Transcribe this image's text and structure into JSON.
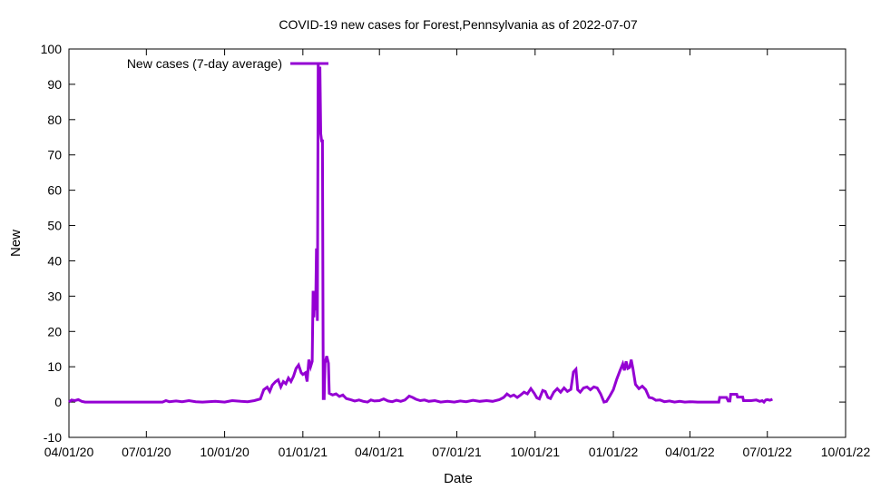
{
  "chart_data": {
    "type": "line",
    "title": "COVID-19 new cases for Forest,Pennsylvania as of 2022-07-07",
    "xlabel": "Date",
    "ylabel": "New",
    "xlim": [
      "2020-04-01",
      "2022-10-01"
    ],
    "ylim": [
      -10,
      100
    ],
    "x_ticks": [
      "04/01/20",
      "07/01/20",
      "10/01/20",
      "01/01/21",
      "04/01/21",
      "07/01/21",
      "10/01/21",
      "01/01/22",
      "04/01/22",
      "07/01/22",
      "10/01/22"
    ],
    "y_ticks": [
      -10,
      0,
      10,
      20,
      30,
      40,
      50,
      60,
      70,
      80,
      90,
      100
    ],
    "grid": false,
    "legend_position": "top-left",
    "series": [
      {
        "name": "New cases (7-day average)",
        "color": "#9400d3",
        "points": [
          [
            "2020-04-01",
            0
          ],
          [
            "2020-04-04",
            0.6
          ],
          [
            "2020-04-08",
            0.4
          ],
          [
            "2020-04-12",
            0.7
          ],
          [
            "2020-04-16",
            0.2
          ],
          [
            "2020-04-20",
            0
          ],
          [
            "2020-05-01",
            0
          ],
          [
            "2020-06-01",
            0
          ],
          [
            "2020-07-01",
            0
          ],
          [
            "2020-07-20",
            0
          ],
          [
            "2020-07-24",
            0.4
          ],
          [
            "2020-07-28",
            0.1
          ],
          [
            "2020-08-05",
            0.3
          ],
          [
            "2020-08-12",
            0.1
          ],
          [
            "2020-08-20",
            0.4
          ],
          [
            "2020-08-28",
            0.1
          ],
          [
            "2020-09-05",
            0
          ],
          [
            "2020-09-20",
            0.2
          ],
          [
            "2020-10-01",
            0
          ],
          [
            "2020-10-10",
            0.4
          ],
          [
            "2020-10-20",
            0.2
          ],
          [
            "2020-10-28",
            0.1
          ],
          [
            "2020-11-05",
            0.4
          ],
          [
            "2020-11-12",
            0.9
          ],
          [
            "2020-11-16",
            3.5
          ],
          [
            "2020-11-20",
            4.2
          ],
          [
            "2020-11-23",
            3.0
          ],
          [
            "2020-11-26",
            4.8
          ],
          [
            "2020-11-30",
            5.8
          ],
          [
            "2020-12-03",
            6.3
          ],
          [
            "2020-12-06",
            4.3
          ],
          [
            "2020-12-09",
            5.8
          ],
          [
            "2020-12-12",
            5.2
          ],
          [
            "2020-12-15",
            6.8
          ],
          [
            "2020-12-18",
            5.8
          ],
          [
            "2020-12-21",
            7.3
          ],
          [
            "2020-12-24",
            9.5
          ],
          [
            "2020-12-27",
            10.5
          ],
          [
            "2020-12-30",
            8.3
          ],
          [
            "2021-01-01",
            7.8
          ],
          [
            "2021-01-04",
            8.3
          ],
          [
            "2021-01-06",
            5.8
          ],
          [
            "2021-01-08",
            12.0
          ],
          [
            "2021-01-10",
            10.0
          ],
          [
            "2021-01-12",
            11.5
          ],
          [
            "2021-01-13",
            31.5
          ],
          [
            "2021-01-14",
            24.0
          ],
          [
            "2021-01-15",
            31.0
          ],
          [
            "2021-01-16",
            26.0
          ],
          [
            "2021-01-17",
            43.5
          ],
          [
            "2021-01-18",
            23.0
          ],
          [
            "2021-01-19",
            96.0
          ],
          [
            "2021-01-20",
            90.0
          ],
          [
            "2021-01-21",
            95.0
          ],
          [
            "2021-01-22",
            76.0
          ],
          [
            "2021-01-23",
            74.0
          ],
          [
            "2021-01-24",
            74.0
          ],
          [
            "2021-01-25",
            1.0
          ],
          [
            "2021-01-26",
            1.0
          ],
          [
            "2021-01-27",
            11.0
          ],
          [
            "2021-01-29",
            13.0
          ],
          [
            "2021-01-31",
            11.0
          ],
          [
            "2021-02-01",
            2.5
          ],
          [
            "2021-02-05",
            2.0
          ],
          [
            "2021-02-09",
            2.3
          ],
          [
            "2021-02-13",
            1.6
          ],
          [
            "2021-02-17",
            2.0
          ],
          [
            "2021-02-21",
            1.0
          ],
          [
            "2021-02-26",
            0.7
          ],
          [
            "2021-03-03",
            0.3
          ],
          [
            "2021-03-08",
            0.6
          ],
          [
            "2021-03-13",
            0.2
          ],
          [
            "2021-03-18",
            0
          ],
          [
            "2021-03-22",
            0.6
          ],
          [
            "2021-03-26",
            0.3
          ],
          [
            "2021-04-01",
            0.4
          ],
          [
            "2021-04-06",
            0.9
          ],
          [
            "2021-04-11",
            0.3
          ],
          [
            "2021-04-16",
            0.1
          ],
          [
            "2021-04-21",
            0.5
          ],
          [
            "2021-04-26",
            0.2
          ],
          [
            "2021-05-01",
            0.6
          ],
          [
            "2021-05-06",
            1.7
          ],
          [
            "2021-05-10",
            1.3
          ],
          [
            "2021-05-14",
            0.8
          ],
          [
            "2021-05-19",
            0.4
          ],
          [
            "2021-05-24",
            0.6
          ],
          [
            "2021-05-29",
            0.2
          ],
          [
            "2021-06-05",
            0.4
          ],
          [
            "2021-06-12",
            0
          ],
          [
            "2021-06-20",
            0.2
          ],
          [
            "2021-06-28",
            0
          ],
          [
            "2021-07-05",
            0.3
          ],
          [
            "2021-07-12",
            0.1
          ],
          [
            "2021-07-20",
            0.5
          ],
          [
            "2021-07-28",
            0.2
          ],
          [
            "2021-08-05",
            0.4
          ],
          [
            "2021-08-12",
            0.2
          ],
          [
            "2021-08-20",
            0.7
          ],
          [
            "2021-08-25",
            1.3
          ],
          [
            "2021-08-29",
            2.3
          ],
          [
            "2021-09-02",
            1.6
          ],
          [
            "2021-09-06",
            2.0
          ],
          [
            "2021-09-10",
            1.3
          ],
          [
            "2021-09-14",
            2.0
          ],
          [
            "2021-09-18",
            2.8
          ],
          [
            "2021-09-22",
            2.3
          ],
          [
            "2021-09-26",
            3.8
          ],
          [
            "2021-09-30",
            2.5
          ],
          [
            "2021-10-03",
            1.2
          ],
          [
            "2021-10-06",
            0.9
          ],
          [
            "2021-10-10",
            3.3
          ],
          [
            "2021-10-13",
            3.0
          ],
          [
            "2021-10-16",
            1.3
          ],
          [
            "2021-10-19",
            1.0
          ],
          [
            "2021-10-23",
            2.8
          ],
          [
            "2021-10-27",
            3.8
          ],
          [
            "2021-10-31",
            2.8
          ],
          [
            "2021-11-04",
            4.0
          ],
          [
            "2021-11-08",
            3.0
          ],
          [
            "2021-11-12",
            3.6
          ],
          [
            "2021-11-15",
            8.5
          ],
          [
            "2021-11-18",
            9.3
          ],
          [
            "2021-11-20",
            3.5
          ],
          [
            "2021-11-23",
            2.8
          ],
          [
            "2021-11-27",
            4.0
          ],
          [
            "2021-12-01",
            4.3
          ],
          [
            "2021-12-05",
            3.5
          ],
          [
            "2021-12-09",
            4.3
          ],
          [
            "2021-12-13",
            4.0
          ],
          [
            "2021-12-17",
            2.3
          ],
          [
            "2021-12-21",
            0
          ],
          [
            "2021-12-24",
            0.2
          ],
          [
            "2021-12-28",
            1.8
          ],
          [
            "2022-01-01",
            3.5
          ],
          [
            "2022-01-05",
            6.5
          ],
          [
            "2022-01-09",
            9.0
          ],
          [
            "2022-01-12",
            10.8
          ],
          [
            "2022-01-14",
            9.0
          ],
          [
            "2022-01-16",
            11.5
          ],
          [
            "2022-01-18",
            9.5
          ],
          [
            "2022-01-20",
            9.8
          ],
          [
            "2022-01-22",
            12.0
          ],
          [
            "2022-01-24",
            9.5
          ],
          [
            "2022-01-27",
            5.0
          ],
          [
            "2022-01-31",
            3.8
          ],
          [
            "2022-02-04",
            4.5
          ],
          [
            "2022-02-08",
            3.5
          ],
          [
            "2022-02-12",
            1.3
          ],
          [
            "2022-02-16",
            1.1
          ],
          [
            "2022-02-20",
            0.5
          ],
          [
            "2022-02-25",
            0.6
          ],
          [
            "2022-03-02",
            0.1
          ],
          [
            "2022-03-08",
            0.3
          ],
          [
            "2022-03-14",
            0
          ],
          [
            "2022-03-20",
            0.2
          ],
          [
            "2022-03-26",
            0
          ],
          [
            "2022-04-01",
            0.1
          ],
          [
            "2022-04-10",
            0
          ],
          [
            "2022-04-20",
            0
          ],
          [
            "2022-04-30",
            0
          ],
          [
            "2022-05-05",
            0
          ],
          [
            "2022-05-06",
            1.3
          ],
          [
            "2022-05-14",
            1.3
          ],
          [
            "2022-05-16",
            0.3
          ],
          [
            "2022-05-18",
            0.3
          ],
          [
            "2022-05-19",
            2.2
          ],
          [
            "2022-05-26",
            2.2
          ],
          [
            "2022-05-27",
            1.4
          ],
          [
            "2022-06-02",
            1.4
          ],
          [
            "2022-06-03",
            0.4
          ],
          [
            "2022-06-12",
            0.4
          ],
          [
            "2022-06-18",
            0.6
          ],
          [
            "2022-06-22",
            0.2
          ],
          [
            "2022-06-25",
            0.4
          ],
          [
            "2022-06-27",
            0
          ],
          [
            "2022-06-29",
            0.6
          ],
          [
            "2022-07-01",
            0.7
          ],
          [
            "2022-07-04",
            0.5
          ],
          [
            "2022-07-07",
            0.8
          ]
        ]
      }
    ]
  }
}
